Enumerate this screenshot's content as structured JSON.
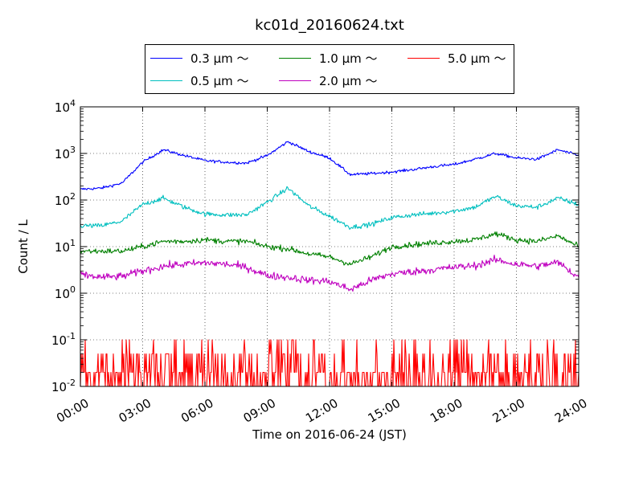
{
  "chart_data": {
    "type": "line",
    "title": "kc01d_20160624.txt",
    "xlabel": "Time on 2016-06-24 (JST)",
    "ylabel": "Count / L",
    "yscale": "log",
    "xlim": [
      "00:00",
      "24:00"
    ],
    "ylim": [
      0.01,
      10000
    ],
    "x_ticks": [
      "00:00",
      "03:00",
      "06:00",
      "09:00",
      "12:00",
      "15:00",
      "18:00",
      "21:00",
      "24:00"
    ],
    "y_ticks": [
      {
        "base": "10",
        "exp": "-2"
      },
      {
        "base": "10",
        "exp": "-1"
      },
      {
        "base": "10",
        "exp": "0"
      },
      {
        "base": "10",
        "exp": "1"
      },
      {
        "base": "10",
        "exp": "2"
      },
      {
        "base": "10",
        "exp": "3"
      },
      {
        "base": "10",
        "exp": "4"
      }
    ],
    "grid": true,
    "legend_position": "top-center",
    "x": [
      "00:00",
      "01:00",
      "02:00",
      "03:00",
      "04:00",
      "05:00",
      "06:00",
      "07:00",
      "08:00",
      "09:00",
      "10:00",
      "11:00",
      "12:00",
      "13:00",
      "14:00",
      "15:00",
      "16:00",
      "17:00",
      "18:00",
      "19:00",
      "20:00",
      "21:00",
      "22:00",
      "23:00",
      "24:00"
    ],
    "series": [
      {
        "name": "0.3 μm ～",
        "color": "#0000ff",
        "noise": 0.03,
        "values": [
          170,
          180,
          230,
          650,
          1200,
          900,
          700,
          650,
          620,
          900,
          1800,
          1100,
          800,
          350,
          370,
          400,
          450,
          520,
          580,
          750,
          1000,
          800,
          750,
          1200,
          900
        ]
      },
      {
        "name": "0.5 μm ～",
        "color": "#00bfbf",
        "noise": 0.05,
        "values": [
          28,
          28,
          35,
          80,
          110,
          70,
          50,
          48,
          48,
          90,
          180,
          75,
          45,
          26,
          30,
          42,
          48,
          52,
          58,
          70,
          120,
          75,
          70,
          110,
          80
        ]
      },
      {
        "name": "1.0 μm ～",
        "color": "#008000",
        "noise": 0.06,
        "values": [
          8,
          8,
          8,
          10,
          13,
          13,
          14,
          13,
          13,
          10,
          9,
          7,
          6,
          4.2,
          6,
          10,
          11,
          12,
          13,
          14,
          19,
          14,
          13,
          17,
          10
        ]
      },
      {
        "name": "2.0 μm ～",
        "color": "#bf00bf",
        "noise": 0.08,
        "values": [
          2.5,
          2.2,
          2.3,
          3,
          3.8,
          4.2,
          4.5,
          4.2,
          3.6,
          2.4,
          2.2,
          1.9,
          1.8,
          1.2,
          1.9,
          2.6,
          2.9,
          3.2,
          3.6,
          3.9,
          5.2,
          4.2,
          3.8,
          4.6,
          2.2
        ]
      },
      {
        "name": "5.0 μm ～",
        "color": "#ff0000",
        "noise": 0,
        "discrete": [
          0.01,
          0.02,
          0.05,
          0.1
        ],
        "values": [
          0.02,
          0.02,
          0.025,
          0.035,
          0.04,
          0.035,
          0.03,
          0.03,
          0.03,
          0.03,
          0.035,
          0.035,
          0.03,
          0.025,
          0.02,
          0.025,
          0.025,
          0.025,
          0.025,
          0.025,
          0.03,
          0.035,
          0.04,
          0.04,
          0.03
        ]
      }
    ]
  }
}
